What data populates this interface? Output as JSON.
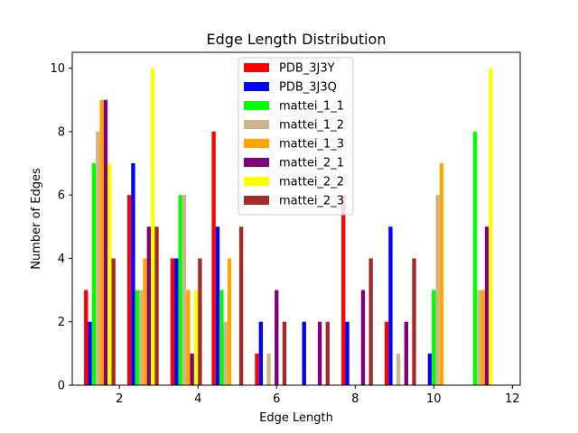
{
  "chart_data": {
    "type": "bar",
    "title": "Edge Length Distribution",
    "xlabel": "Edge Length",
    "ylabel": "Number of Edges",
    "xlim": [
      0.8,
      12.2
    ],
    "ylim": [
      0,
      10.5
    ],
    "xticks": [
      2,
      4,
      6,
      8,
      10,
      12
    ],
    "yticks": [
      0,
      2,
      4,
      6,
      8,
      10
    ],
    "legend_position": "top-center",
    "grid": false,
    "series": [
      {
        "name": "PDB_3J3Y",
        "color": "#ff0000",
        "points": [
          {
            "x": 1.15,
            "y": 3
          },
          {
            "x": 2.25,
            "y": 6
          },
          {
            "x": 3.35,
            "y": 4
          },
          {
            "x": 4.4,
            "y": 8
          },
          {
            "x": 5.5,
            "y": 1
          },
          {
            "x": 7.7,
            "y": 6
          },
          {
            "x": 8.8,
            "y": 2
          }
        ]
      },
      {
        "name": "PDB_3J3Q",
        "color": "#0000ff",
        "points": [
          {
            "x": 1.25,
            "y": 2
          },
          {
            "x": 2.35,
            "y": 7
          },
          {
            "x": 3.45,
            "y": 4
          },
          {
            "x": 4.5,
            "y": 5
          },
          {
            "x": 5.6,
            "y": 2
          },
          {
            "x": 6.7,
            "y": 2
          },
          {
            "x": 7.8,
            "y": 2
          },
          {
            "x": 8.9,
            "y": 5
          },
          {
            "x": 9.9,
            "y": 1
          }
        ]
      },
      {
        "name": "mattei_1_1",
        "color": "#00ff00",
        "points": [
          {
            "x": 1.35,
            "y": 7
          },
          {
            "x": 2.45,
            "y": 3
          },
          {
            "x": 3.55,
            "y": 6
          },
          {
            "x": 4.6,
            "y": 3
          },
          {
            "x": 10.0,
            "y": 3
          },
          {
            "x": 11.05,
            "y": 8
          }
        ]
      },
      {
        "name": "mattei_1_2",
        "color": "#d2b48c",
        "points": [
          {
            "x": 1.45,
            "y": 8
          },
          {
            "x": 2.55,
            "y": 3
          },
          {
            "x": 3.65,
            "y": 6
          },
          {
            "x": 4.7,
            "y": 2
          },
          {
            "x": 5.8,
            "y": 1
          },
          {
            "x": 9.1,
            "y": 1
          },
          {
            "x": 10.1,
            "y": 6
          },
          {
            "x": 11.15,
            "y": 3
          }
        ]
      },
      {
        "name": "mattei_1_3",
        "color": "#ffa500",
        "points": [
          {
            "x": 1.55,
            "y": 9
          },
          {
            "x": 2.65,
            "y": 4
          },
          {
            "x": 3.75,
            "y": 3
          },
          {
            "x": 4.8,
            "y": 4
          },
          {
            "x": 10.2,
            "y": 7
          },
          {
            "x": 11.25,
            "y": 3
          }
        ]
      },
      {
        "name": "mattei_2_1",
        "color": "#800080",
        "points": [
          {
            "x": 1.65,
            "y": 9
          },
          {
            "x": 2.75,
            "y": 5
          },
          {
            "x": 3.85,
            "y": 1
          },
          {
            "x": 6.0,
            "y": 3
          },
          {
            "x": 7.1,
            "y": 2
          },
          {
            "x": 8.2,
            "y": 3
          },
          {
            "x": 9.3,
            "y": 2
          },
          {
            "x": 11.35,
            "y": 5
          }
        ]
      },
      {
        "name": "mattei_2_2",
        "color": "#ffff00",
        "points": [
          {
            "x": 1.75,
            "y": 7
          },
          {
            "x": 2.85,
            "y": 10
          },
          {
            "x": 3.95,
            "y": 3
          },
          {
            "x": 11.45,
            "y": 10
          }
        ]
      },
      {
        "name": "mattei_2_3",
        "color": "#a52a2a",
        "points": [
          {
            "x": 1.85,
            "y": 4
          },
          {
            "x": 2.95,
            "y": 5
          },
          {
            "x": 4.05,
            "y": 4
          },
          {
            "x": 5.1,
            "y": 5
          },
          {
            "x": 6.2,
            "y": 2
          },
          {
            "x": 7.3,
            "y": 2
          },
          {
            "x": 8.4,
            "y": 4
          },
          {
            "x": 9.5,
            "y": 4
          }
        ]
      }
    ]
  }
}
